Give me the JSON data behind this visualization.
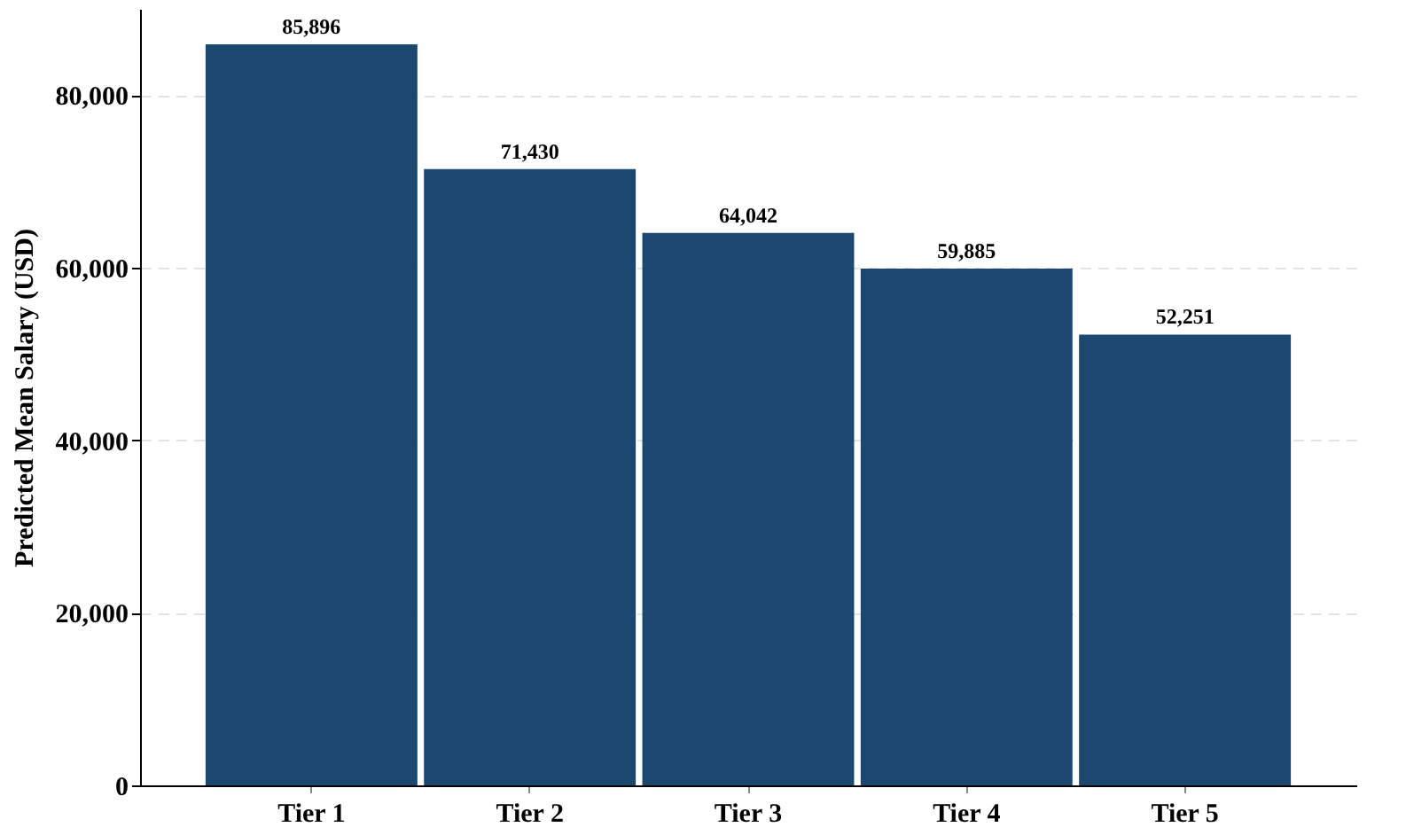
{
  "chart_data": {
    "type": "bar",
    "ylabel": "Predicted Mean Salary (USD)",
    "categories": [
      "Tier 1",
      "Tier 2",
      "Tier 3",
      "Tier 4",
      "Tier 5"
    ],
    "values": [
      85896,
      71430,
      64042,
      59885,
      52251
    ],
    "color": "#1c4870",
    "ylim": [
      0,
      90000
    ],
    "yticks": [
      {
        "value": 0,
        "label": "0"
      },
      {
        "value": 20000,
        "label": "20,000"
      },
      {
        "value": 40000,
        "label": "40,000"
      },
      {
        "value": 60000,
        "label": "60,000"
      },
      {
        "value": 80000,
        "label": "80,000"
      }
    ],
    "value_labels": [
      "85,896",
      "71,430",
      "64,042",
      "59,885",
      "52,251"
    ],
    "grid": "y"
  }
}
